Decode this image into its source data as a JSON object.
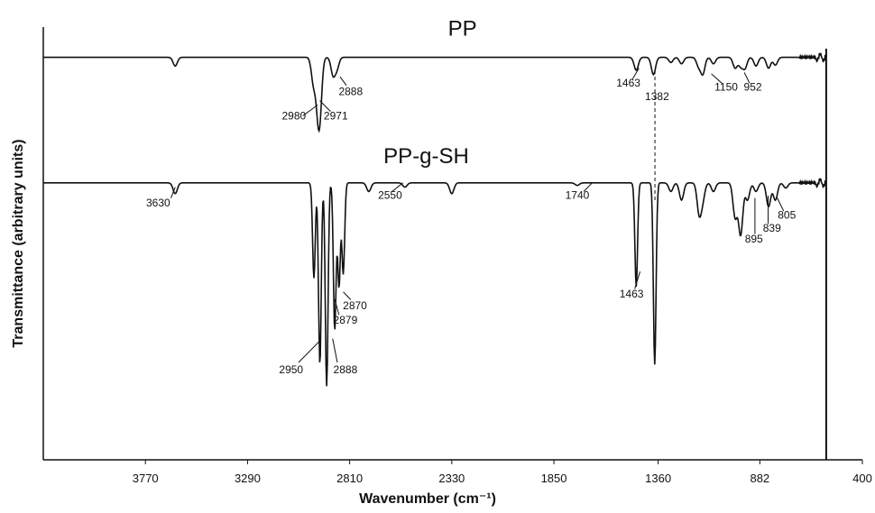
{
  "chart_data": {
    "type": "line",
    "title": "",
    "xlabel": "Wavenumber (cm⁻¹)",
    "ylabel": "Transmittance (arbitrary units)",
    "xlim": [
      4250,
      400
    ],
    "x_reversed": true,
    "xticks": [
      3770,
      3290,
      2810,
      2330,
      1850,
      1360,
      882,
      400
    ],
    "grid": false,
    "legend": "none",
    "line_color": "#111111",
    "series": [
      {
        "name": "PP",
        "baseline": 0.93,
        "end_wavenumber": 570,
        "peaks": [
          {
            "x": 3630,
            "depth": 0.02
          },
          {
            "x": 2980,
            "depth": 0.06
          },
          {
            "x": 2960,
            "depth": 0.08
          },
          {
            "x": 2950,
            "depth": 0.11
          },
          {
            "x": 2888,
            "depth": 0.04
          },
          {
            "x": 2870,
            "depth": 0.025
          },
          {
            "x": 1463,
            "depth": 0.03
          },
          {
            "x": 1382,
            "depth": 0.04
          },
          {
            "x": 1300,
            "depth": 0.012
          },
          {
            "x": 1250,
            "depth": 0.015
          },
          {
            "x": 1170,
            "depth": 0.02
          },
          {
            "x": 1150,
            "depth": 0.038
          },
          {
            "x": 1100,
            "depth": 0.015
          },
          {
            "x": 998,
            "depth": 0.025
          },
          {
            "x": 972,
            "depth": 0.02
          },
          {
            "x": 952,
            "depth": 0.025
          },
          {
            "x": 900,
            "depth": 0.02
          },
          {
            "x": 841,
            "depth": 0.025
          },
          {
            "x": 809,
            "depth": 0.018
          }
        ]
      },
      {
        "name": "PP-g-SH",
        "baseline": 0.64,
        "end_wavenumber": 570,
        "peaks": [
          {
            "x": 3630,
            "depth": 0.025
          },
          {
            "x": 2978,
            "depth": 0.22
          },
          {
            "x": 2950,
            "depth": 0.42
          },
          {
            "x": 2918,
            "depth": 0.47
          },
          {
            "x": 2880,
            "depth": 0.34
          },
          {
            "x": 2860,
            "depth": 0.24
          },
          {
            "x": 2840,
            "depth": 0.21
          },
          {
            "x": 2720,
            "depth": 0.02
          },
          {
            "x": 2550,
            "depth": 0.01
          },
          {
            "x": 2330,
            "depth": 0.025
          },
          {
            "x": 1740,
            "depth": 0.006
          },
          {
            "x": 1463,
            "depth": 0.24
          },
          {
            "x": 1376,
            "depth": 0.42
          },
          {
            "x": 1300,
            "depth": 0.02
          },
          {
            "x": 1250,
            "depth": 0.04
          },
          {
            "x": 1167,
            "depth": 0.07
          },
          {
            "x": 1150,
            "depth": 0.035
          },
          {
            "x": 1100,
            "depth": 0.02
          },
          {
            "x": 998,
            "depth": 0.08
          },
          {
            "x": 972,
            "depth": 0.12
          },
          {
            "x": 940,
            "depth": 0.04
          },
          {
            "x": 900,
            "depth": 0.02
          },
          {
            "x": 841,
            "depth": 0.055
          },
          {
            "x": 809,
            "depth": 0.04
          },
          {
            "x": 760,
            "depth": 0.012
          }
        ]
      }
    ],
    "series_titles": [
      {
        "text": "PP",
        "x": 2280,
        "y": 0.98
      },
      {
        "text": "PP-g-SH",
        "x": 2450,
        "y": 0.685
      }
    ],
    "reference_line": {
      "x": 1375,
      "y_from": 0.9,
      "y_to": 0.6,
      "style": "dashed"
    },
    "annotations": [
      {
        "text": "2980",
        "label_x": 3072,
        "label_y": 0.786,
        "line": [
          3030,
          0.795,
          2960,
          0.82
        ]
      },
      {
        "text": "2971",
        "label_x": 2875,
        "label_y": 0.786,
        "line": [
          2900,
          0.805,
          2950,
          0.83
        ]
      },
      {
        "text": "2888",
        "label_x": 2805,
        "label_y": 0.843,
        "line": [
          2825,
          0.865,
          2855,
          0.885
        ]
      },
      {
        "text": "1463",
        "label_x": 1500,
        "label_y": 0.862,
        "line": [
          1480,
          0.88,
          1450,
          0.905
        ]
      },
      {
        "text": "1382",
        "label_x": 1365,
        "label_y": 0.831,
        "line": null
      },
      {
        "text": "1150",
        "label_x": 1040,
        "label_y": 0.853,
        "line": [
          1060,
          0.87,
          1110,
          0.892
        ]
      },
      {
        "text": "952",
        "label_x": 915,
        "label_y": 0.853,
        "line": [
          930,
          0.87,
          955,
          0.895
        ]
      },
      {
        "text": "3630",
        "label_x": 3710,
        "label_y": 0.585,
        "line": [
          3650,
          0.605,
          3630,
          0.63
        ]
      },
      {
        "text": "2550",
        "label_x": 2620,
        "label_y": 0.603,
        "line": [
          2610,
          0.62,
          2560,
          0.64
        ]
      },
      {
        "text": "1740",
        "label_x": 1740,
        "label_y": 0.603,
        "line": [
          1710,
          0.62,
          1670,
          0.64
        ]
      },
      {
        "text": "1463",
        "label_x": 1485,
        "label_y": 0.375,
        "line": [
          1470,
          0.395,
          1445,
          0.435
        ]
      },
      {
        "text": "895",
        "label_x": 910,
        "label_y": 0.502,
        "line": [
          905,
          0.522,
          905,
          0.605
        ]
      },
      {
        "text": "839",
        "label_x": 825,
        "label_y": 0.527,
        "line": [
          843,
          0.545,
          843,
          0.61
        ]
      },
      {
        "text": "805",
        "label_x": 755,
        "label_y": 0.557,
        "line": [
          770,
          0.575,
          800,
          0.605
        ]
      },
      {
        "text": "2870",
        "label_x": 2785,
        "label_y": 0.348,
        "line": [
          2805,
          0.37,
          2840,
          0.388
        ]
      },
      {
        "text": "2879",
        "label_x": 2830,
        "label_y": 0.315,
        "line": [
          2860,
          0.335,
          2880,
          0.37
        ]
      },
      {
        "text": "2950",
        "label_x": 3085,
        "label_y": 0.2,
        "line": [
          3050,
          0.225,
          2950,
          0.275
        ]
      },
      {
        "text": "2888",
        "label_x": 2830,
        "label_y": 0.2,
        "line": [
          2868,
          0.225,
          2890,
          0.28
        ]
      }
    ]
  }
}
